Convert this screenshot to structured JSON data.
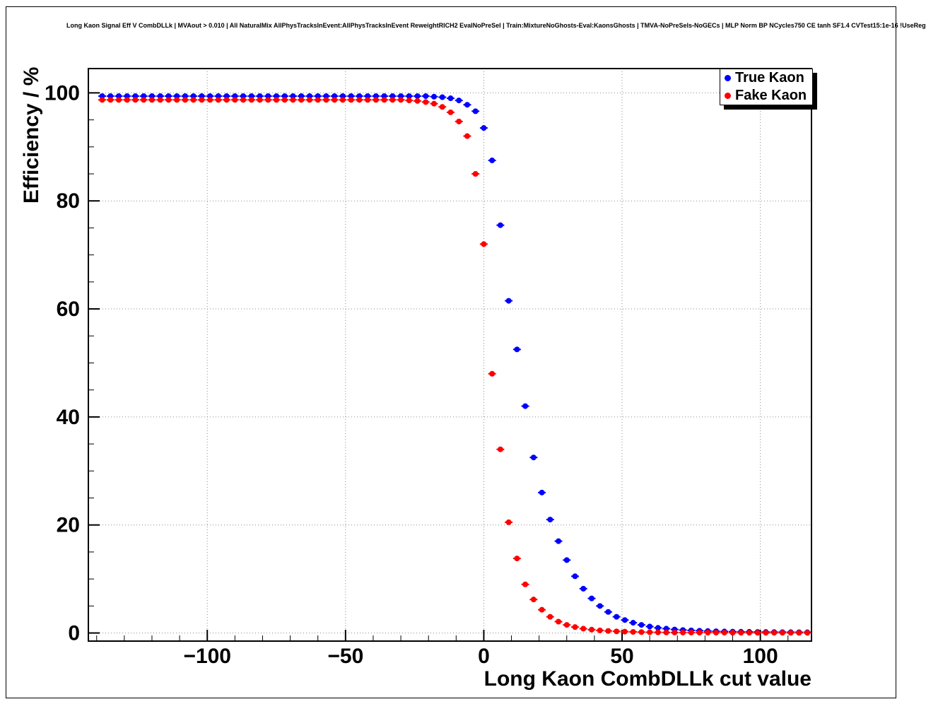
{
  "chart_data": {
    "type": "scatter",
    "title": "Long Kaon Signal Eff V CombDLLk | MVAout > 0.010 | All NaturalMix AllPhysTracksInEvent:AllPhysTracksInEvent ReweightRICH2 EvalNoPreSel | Train:MixtureNoGhosts-Eval:KaonsGhosts | TMVA-NoPreSels-NoGECs | MLP Norm BP NCycles750 CE tanh SF1.4 CVTest15:1e-16 !UseReg",
    "xlabel": "Long Kaon CombDLLk cut value",
    "ylabel": "Efficiency / %",
    "xlim": [
      -143,
      118.5
    ],
    "ylim": [
      -1.5,
      104.5
    ],
    "x_ticks": [
      -100,
      -50,
      0,
      50,
      100
    ],
    "y_ticks": [
      0,
      20,
      40,
      60,
      80,
      100
    ],
    "x_minor_step": 10,
    "y_minor_step": 5,
    "grid": true,
    "grid_style": "dotted",
    "legend_position": "top-right",
    "marker_style": "filled-circle",
    "series": [
      {
        "name": "True Kaon",
        "color": "#0000ff",
        "x": [
          -138,
          -135,
          -132,
          -129,
          -126,
          -123,
          -120,
          -117,
          -114,
          -111,
          -108,
          -105,
          -102,
          -99,
          -96,
          -93,
          -90,
          -87,
          -84,
          -81,
          -78,
          -75,
          -72,
          -69,
          -66,
          -63,
          -60,
          -57,
          -54,
          -51,
          -48,
          -45,
          -42,
          -39,
          -36,
          -33,
          -30,
          -27,
          -24,
          -21,
          -18,
          -15,
          -12,
          -9,
          -6,
          -3,
          0,
          3,
          6,
          9,
          12,
          15,
          18,
          21,
          24,
          27,
          30,
          33,
          36,
          39,
          42,
          45,
          48,
          51,
          54,
          57,
          60,
          63,
          66,
          69,
          72,
          75,
          78,
          81,
          84,
          87,
          90,
          93,
          96,
          99,
          102,
          105,
          108,
          111,
          114,
          117
        ],
        "y": [
          99.4,
          99.4,
          99.4,
          99.4,
          99.4,
          99.4,
          99.4,
          99.4,
          99.4,
          99.4,
          99.4,
          99.4,
          99.4,
          99.4,
          99.4,
          99.4,
          99.4,
          99.4,
          99.4,
          99.4,
          99.4,
          99.4,
          99.4,
          99.4,
          99.4,
          99.4,
          99.4,
          99.4,
          99.4,
          99.4,
          99.4,
          99.4,
          99.4,
          99.4,
          99.4,
          99.4,
          99.4,
          99.4,
          99.4,
          99.4,
          99.3,
          99.2,
          99.0,
          98.6,
          97.8,
          96.6,
          93.5,
          87.5,
          75.5,
          61.5,
          52.5,
          42.0,
          32.5,
          26.0,
          21.0,
          17.0,
          13.5,
          10.5,
          8.2,
          6.4,
          5.0,
          3.9,
          3.0,
          2.4,
          1.9,
          1.5,
          1.2,
          0.95,
          0.8,
          0.65,
          0.55,
          0.48,
          0.42,
          0.36,
          0.32,
          0.28,
          0.25,
          0.23,
          0.21,
          0.19,
          0.18,
          0.17,
          0.16,
          0.15,
          0.14,
          0.13
        ]
      },
      {
        "name": "Fake Kaon",
        "color": "#ff0000",
        "x": [
          -138,
          -135,
          -132,
          -129,
          -126,
          -123,
          -120,
          -117,
          -114,
          -111,
          -108,
          -105,
          -102,
          -99,
          -96,
          -93,
          -90,
          -87,
          -84,
          -81,
          -78,
          -75,
          -72,
          -69,
          -66,
          -63,
          -60,
          -57,
          -54,
          -51,
          -48,
          -45,
          -42,
          -39,
          -36,
          -33,
          -30,
          -27,
          -24,
          -21,
          -18,
          -15,
          -12,
          -9,
          -6,
          -3,
          0,
          3,
          6,
          9,
          12,
          15,
          18,
          21,
          24,
          27,
          30,
          33,
          36,
          39,
          42,
          45,
          48,
          51,
          54,
          57,
          60,
          63,
          66,
          69,
          72,
          75,
          78,
          81,
          84,
          87,
          90,
          93,
          96,
          99,
          102,
          105,
          108,
          111,
          114,
          117
        ],
        "y": [
          98.7,
          98.7,
          98.7,
          98.7,
          98.7,
          98.7,
          98.7,
          98.7,
          98.7,
          98.7,
          98.7,
          98.7,
          98.7,
          98.7,
          98.7,
          98.7,
          98.7,
          98.7,
          98.7,
          98.7,
          98.7,
          98.7,
          98.7,
          98.7,
          98.7,
          98.7,
          98.7,
          98.7,
          98.7,
          98.7,
          98.7,
          98.7,
          98.7,
          98.7,
          98.7,
          98.7,
          98.7,
          98.6,
          98.5,
          98.3,
          98.0,
          97.4,
          96.4,
          94.7,
          92.0,
          85.0,
          72.0,
          48.0,
          34.0,
          20.5,
          13.8,
          9.0,
          6.2,
          4.3,
          3.0,
          2.1,
          1.5,
          1.1,
          0.8,
          0.62,
          0.48,
          0.38,
          0.3,
          0.25,
          0.2,
          0.17,
          0.14,
          0.12,
          0.1,
          0.09,
          0.08,
          0.08,
          0.07,
          0.07,
          0.06,
          0.06,
          0.05,
          0.05,
          0.05,
          0.04,
          0.04,
          0.04,
          0.04,
          0.03,
          0.03,
          0.03
        ]
      }
    ]
  },
  "colors": {
    "frame": "#000000",
    "grid": "#8a8a8a",
    "background": "#ffffff",
    "true_kaon": "#0000ff",
    "fake_kaon": "#ff0000"
  }
}
